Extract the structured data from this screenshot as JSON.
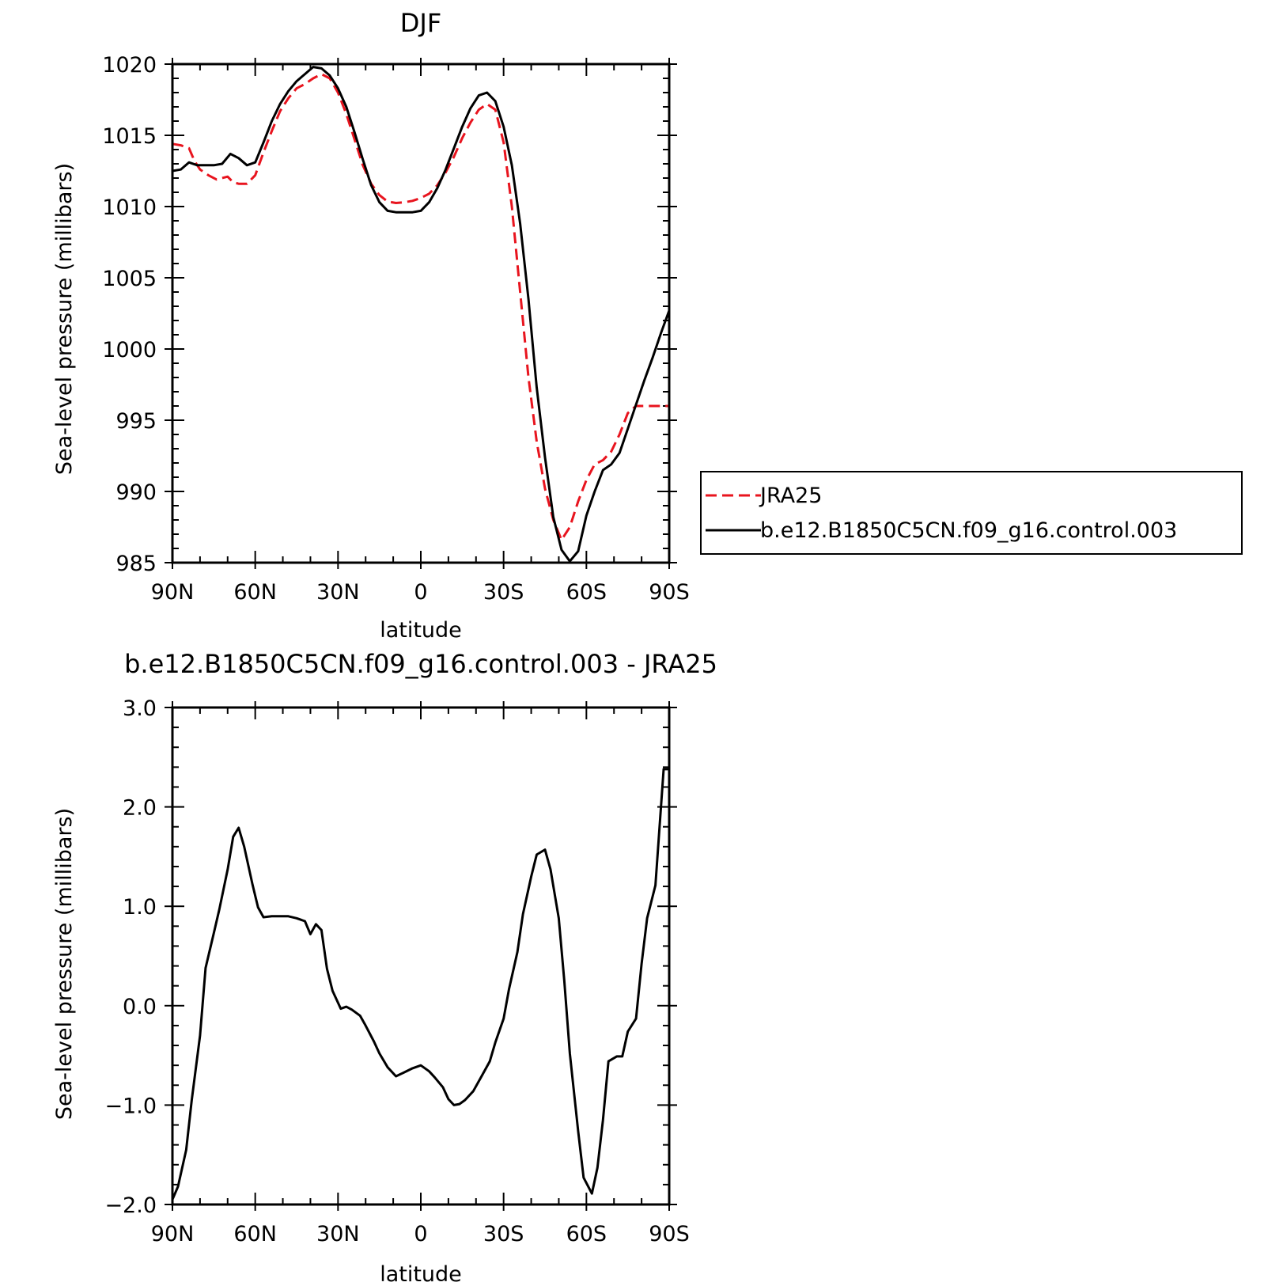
{
  "chart_data": [
    {
      "type": "line",
      "title": "DJF",
      "xlabel": "latitude",
      "ylabel": "Sea-level pressure (millibars)",
      "xlim": [
        90,
        -90
      ],
      "ylim": [
        985,
        1020
      ],
      "x_ticks": [
        90,
        60,
        30,
        0,
        -30,
        -60,
        -90
      ],
      "x_tick_labels": [
        "90N",
        "60N",
        "30N",
        "0",
        "30S",
        "60S",
        "90S"
      ],
      "y_ticks": [
        985,
        990,
        995,
        1000,
        1005,
        1010,
        1015,
        1020
      ],
      "y_tick_labels": [
        "985",
        "990",
        "995",
        "1000",
        "1005",
        "1010",
        "1015",
        "1020"
      ],
      "legend_position": "right",
      "series": [
        {
          "name": "JRA25",
          "color": "#e8141e",
          "dash": "dashed",
          "x": [
            90,
            87,
            84,
            82,
            80,
            77,
            74,
            72,
            70,
            68,
            66,
            63,
            60,
            57,
            54,
            51,
            48,
            45,
            42,
            39,
            36,
            33,
            30,
            27,
            24,
            21,
            18,
            15,
            12,
            9,
            6,
            3,
            0,
            -3,
            -6,
            -9,
            -12,
            -15,
            -18,
            -21,
            -24,
            -27,
            -30,
            -33,
            -36,
            -39,
            -42,
            -45,
            -48,
            -51,
            -54,
            -57,
            -60,
            -63,
            -66,
            -69,
            -72,
            -75,
            -78,
            -81,
            -84,
            -87,
            -90
          ],
          "values": [
            1014.4,
            1014.3,
            1014.1,
            1013.2,
            1012.6,
            1012.2,
            1011.9,
            1012.0,
            1012.1,
            1011.7,
            1011.6,
            1011.6,
            1012.2,
            1013.8,
            1015.3,
            1016.7,
            1017.6,
            1018.3,
            1018.6,
            1019.0,
            1019.3,
            1019.0,
            1018.0,
            1016.5,
            1014.7,
            1012.9,
            1011.6,
            1010.8,
            1010.35,
            1010.25,
            1010.3,
            1010.4,
            1010.6,
            1010.9,
            1011.5,
            1012.4,
            1013.5,
            1014.8,
            1015.9,
            1016.8,
            1017.2,
            1016.8,
            1014.5,
            1010.0,
            1004.0,
            998.0,
            993.5,
            990.2,
            988.0,
            986.6,
            987.5,
            989.3,
            990.8,
            991.9,
            992.2,
            992.8,
            994.0,
            995.5,
            996.0,
            996.0,
            996.0,
            996.0,
            996.0
          ]
        },
        {
          "name": "b.e12.B1850C5CN.f09_g16.control.003",
          "color": "#000000",
          "dash": "solid",
          "x": [
            90,
            87,
            84,
            81,
            78,
            75,
            72,
            69,
            66,
            63,
            60,
            57,
            54,
            51,
            48,
            45,
            42,
            39,
            36,
            33,
            30,
            27,
            24,
            21,
            18,
            15,
            12,
            9,
            6,
            3,
            0,
            -3,
            -6,
            -9,
            -12,
            -15,
            -18,
            -21,
            -24,
            -27,
            -30,
            -33,
            -36,
            -39,
            -42,
            -45,
            -48,
            -51,
            -54,
            -57,
            -60,
            -63,
            -66,
            -69,
            -72,
            -75,
            -78,
            -81,
            -84,
            -87,
            -90
          ],
          "values": [
            1012.5,
            1012.6,
            1013.1,
            1012.9,
            1012.9,
            1012.9,
            1013.0,
            1013.7,
            1013.4,
            1012.9,
            1013.1,
            1014.5,
            1016.0,
            1017.2,
            1018.1,
            1018.8,
            1019.3,
            1019.8,
            1019.7,
            1019.2,
            1018.3,
            1017.0,
            1015.2,
            1013.3,
            1011.5,
            1010.3,
            1009.7,
            1009.6,
            1009.6,
            1009.6,
            1009.7,
            1010.3,
            1011.3,
            1012.6,
            1014.1,
            1015.6,
            1016.9,
            1017.8,
            1018.0,
            1017.4,
            1015.6,
            1012.9,
            1008.8,
            1003.5,
            997.3,
            992.4,
            988.2,
            985.9,
            985.1,
            985.8,
            988.3,
            990.0,
            991.5,
            991.9,
            992.7,
            994.4,
            996.1,
            997.8,
            999.4,
            1001.1,
            1002.7
          ]
        }
      ]
    },
    {
      "type": "line",
      "title": "b.e12.B1850C5CN.f09_g16.control.003 - JRA25",
      "xlabel": "latitude",
      "ylabel": "Sea-level pressure (millibars)",
      "xlim": [
        90,
        -90
      ],
      "ylim": [
        -2.0,
        3.0
      ],
      "x_ticks": [
        90,
        60,
        30,
        0,
        -30,
        -60,
        -90
      ],
      "x_tick_labels": [
        "90N",
        "60N",
        "30N",
        "0",
        "30S",
        "60S",
        "90S"
      ],
      "y_ticks": [
        -2,
        -1,
        0,
        1,
        2,
        3
      ],
      "y_tick_labels": [
        "−2.0",
        "−1.0",
        "0.0",
        "1.0",
        "2.0",
        "3.0"
      ],
      "series": [
        {
          "color": "#000000",
          "dash": "solid",
          "x": [
            90,
            88,
            85,
            83,
            80,
            78,
            75,
            73,
            70,
            68,
            66,
            64,
            61,
            59,
            57,
            54,
            51,
            48,
            45,
            42,
            40,
            38,
            36,
            34,
            32,
            29,
            27,
            25,
            22,
            20,
            17,
            15,
            12,
            9,
            6,
            3,
            0,
            -3,
            -5,
            -8,
            -10,
            -12,
            -14,
            -16,
            -19,
            -22,
            -25,
            -27,
            -30,
            -32,
            -35,
            -37,
            -40,
            -42,
            -45,
            -47,
            -50,
            -52,
            -54,
            -57,
            -59,
            -62,
            -64,
            -66,
            -68,
            -71,
            -73,
            -75,
            -78,
            -80,
            -82,
            -85,
            -88,
            -90
          ],
          "values": [
            -1.95,
            -1.82,
            -1.45,
            -0.95,
            -0.3,
            0.38,
            0.73,
            0.97,
            1.37,
            1.7,
            1.79,
            1.6,
            1.22,
            0.99,
            0.89,
            0.9,
            0.9,
            0.9,
            0.88,
            0.85,
            0.72,
            0.82,
            0.76,
            0.37,
            0.15,
            -0.03,
            -0.01,
            -0.04,
            -0.1,
            -0.2,
            -0.36,
            -0.48,
            -0.62,
            -0.71,
            -0.67,
            -0.63,
            -0.6,
            -0.66,
            -0.72,
            -0.82,
            -0.94,
            -1.0,
            -0.99,
            -0.95,
            -0.86,
            -0.71,
            -0.56,
            -0.37,
            -0.13,
            0.17,
            0.54,
            0.92,
            1.3,
            1.52,
            1.57,
            1.37,
            0.88,
            0.25,
            -0.48,
            -1.26,
            -1.73,
            -1.89,
            -1.63,
            -1.15,
            -0.56,
            -0.51,
            -0.51,
            -0.26,
            -0.13,
            0.42,
            0.88,
            1.21,
            2.38,
            2.38
          ]
        }
      ]
    }
  ]
}
